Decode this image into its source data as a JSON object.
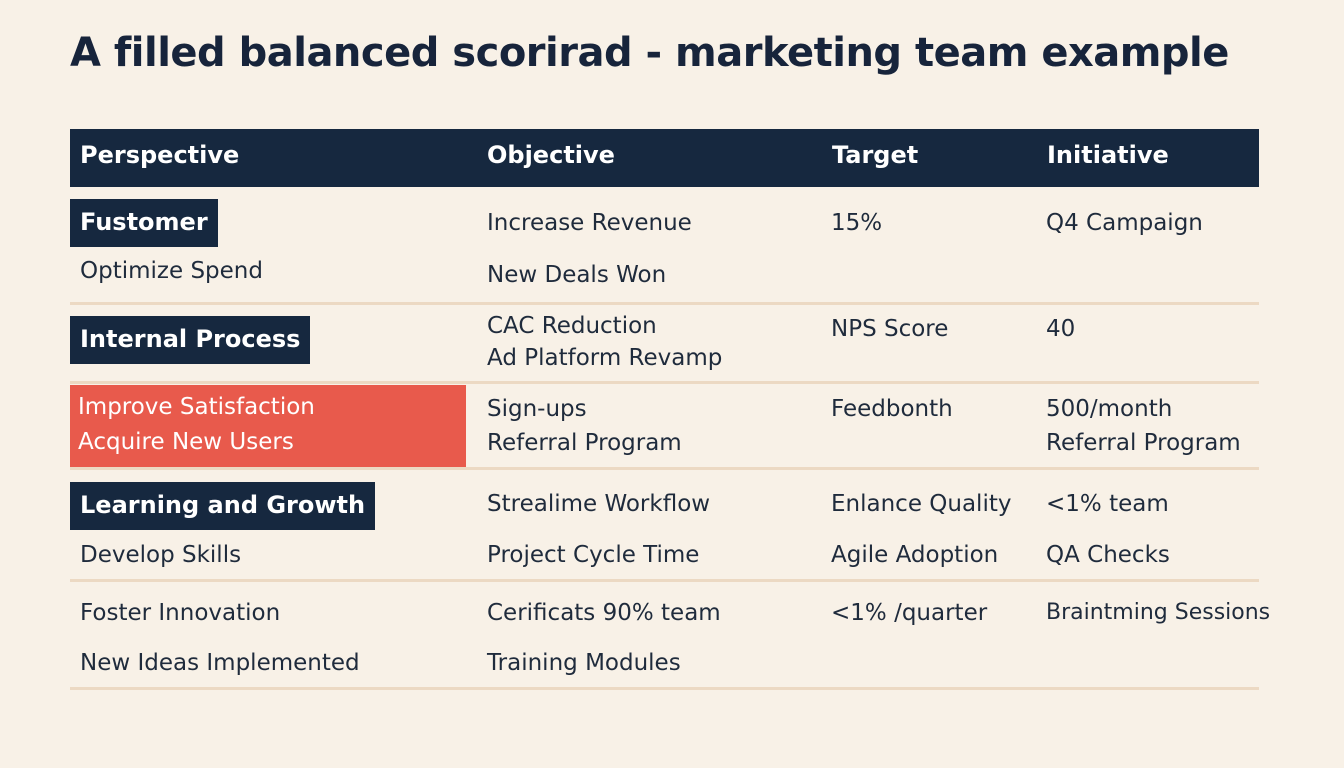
{
  "title": "A filled balanced scorirad - marketing team example",
  "table": {
    "headers": [
      "Perspective",
      "Objective",
      "Target",
      "Initiative"
    ],
    "rows": [
      {
        "perspective_tag": "Fustomer",
        "perspective_text": "Optimize Spend",
        "objective_1": "Increase Revenue",
        "objective_2": "New Deals Won",
        "target": "15%",
        "initiative": "Q4 Campaign"
      },
      {
        "perspective_tag": "Internal Process",
        "objective_1": "CAC Reduction",
        "objective_2": "Ad Platform Revamp",
        "target": "NPS Score",
        "initiative": "40"
      },
      {
        "perspective_1": "Improve Satisfaction",
        "perspective_2": "Acquire New Users",
        "objective_1": "Sign-ups",
        "objective_2": "Referral Program",
        "target": "Feedbonth",
        "initiative_1": "500/month",
        "initiative_2": "Referral Program"
      },
      {
        "perspective_tag": "Learning and Growth",
        "perspective_text": "Develop Skills",
        "objective_1": "Strealime Workflow",
        "objective_2": "Project Cycle Time",
        "target_1": "Enlance Quality",
        "target_2": "Agile Adoption",
        "initiative_1": "<1% team",
        "initiative_2": "QA Checks"
      },
      {
        "perspective_1": "Foster Innovation",
        "perspective_2": "New Ideas Implemented",
        "objective_1": "Cerificats 90% team",
        "objective_2": "Training Modules",
        "target": "<1% /quarter",
        "initiative": "Braintming Sessions"
      }
    ]
  },
  "colors": {
    "background": "#f8f1e7",
    "header": "#16283f",
    "highlight": "#e85a4c",
    "rule": "#ecd9c3"
  }
}
